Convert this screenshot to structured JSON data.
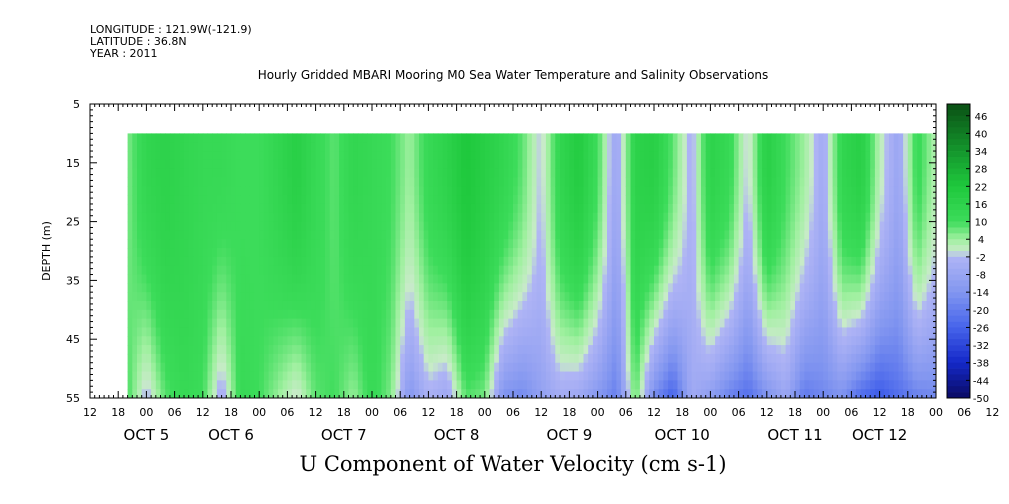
{
  "header": {
    "longitude": "LONGITUDE : 121.9W(-121.9)",
    "latitude": "LATITUDE : 36.8N",
    "year": "YEAR : 2011",
    "title": "Hourly Gridded MBARI Mooring M0 Sea Water Temperature and Salinity Observations"
  },
  "chart_data": {
    "type": "heatmap",
    "title": "U Component of Water Velocity (cm s-1)",
    "ylabel": "DEPTH (m)",
    "y_reversed": true,
    "ylim": [
      5,
      55
    ],
    "yticks": [
      5,
      15,
      25,
      35,
      45,
      55
    ],
    "data_depth_range": [
      10,
      55
    ],
    "xlim_hours": [
      0,
      180
    ],
    "x_hour_ticks": [
      "12",
      "18",
      "00",
      "06",
      "12",
      "18",
      "00",
      "06",
      "12",
      "18",
      "00",
      "06",
      "12",
      "18",
      "00",
      "06",
      "12",
      "18",
      "00",
      "06",
      "12",
      "18",
      "00",
      "06",
      "12",
      "18",
      "00",
      "06",
      "12",
      "18",
      "00",
      "06",
      "12"
    ],
    "date_labels": [
      "OCT  5",
      "OCT  6",
      "OCT  7",
      "OCT  8",
      "OCT  9",
      "OCT 10",
      "OCT 11",
      "OCT 12"
    ],
    "date_label_hours": [
      12,
      30,
      54,
      78,
      102,
      126,
      150,
      168
    ],
    "data_start_hour": 8,
    "data_end_hour": 180,
    "colorbar": {
      "min": -50,
      "max": 50,
      "step": 2,
      "labels": [
        "46",
        "40",
        "34",
        "28",
        "22",
        "16",
        "10",
        "4",
        "-2",
        "-8",
        "-14",
        "-20",
        "-26",
        "-32",
        "-38",
        "-44",
        "-50"
      ]
    },
    "column_profile_hours": [
      8,
      12,
      16,
      20,
      24,
      28,
      32,
      36,
      40,
      44,
      48,
      52,
      56,
      60,
      64,
      68,
      72,
      76,
      80,
      84,
      88,
      92,
      96,
      100,
      104,
      108,
      112,
      116,
      120,
      124,
      128,
      132,
      136,
      140,
      144,
      148,
      152,
      156,
      160,
      164,
      168,
      172,
      176,
      180
    ],
    "column_surface_u": [
      6,
      14,
      16,
      14,
      12,
      12,
      10,
      10,
      14,
      18,
      12,
      8,
      14,
      12,
      10,
      4,
      12,
      16,
      22,
      18,
      14,
      8,
      -2,
      14,
      20,
      10,
      -8,
      16,
      18,
      8,
      -4,
      16,
      12,
      -2,
      18,
      10,
      4,
      -6,
      14,
      18,
      2,
      -8,
      12,
      2
    ],
    "column_bottom_u": [
      10,
      -4,
      8,
      12,
      10,
      -6,
      12,
      10,
      4,
      -2,
      8,
      10,
      4,
      12,
      6,
      -14,
      -4,
      -8,
      8,
      6,
      -16,
      -18,
      -10,
      -6,
      -8,
      -14,
      -20,
      8,
      -18,
      -28,
      -6,
      -12,
      -20,
      -24,
      -16,
      -8,
      -22,
      -18,
      -16,
      -26,
      -30,
      -24,
      -20,
      -18
    ]
  }
}
